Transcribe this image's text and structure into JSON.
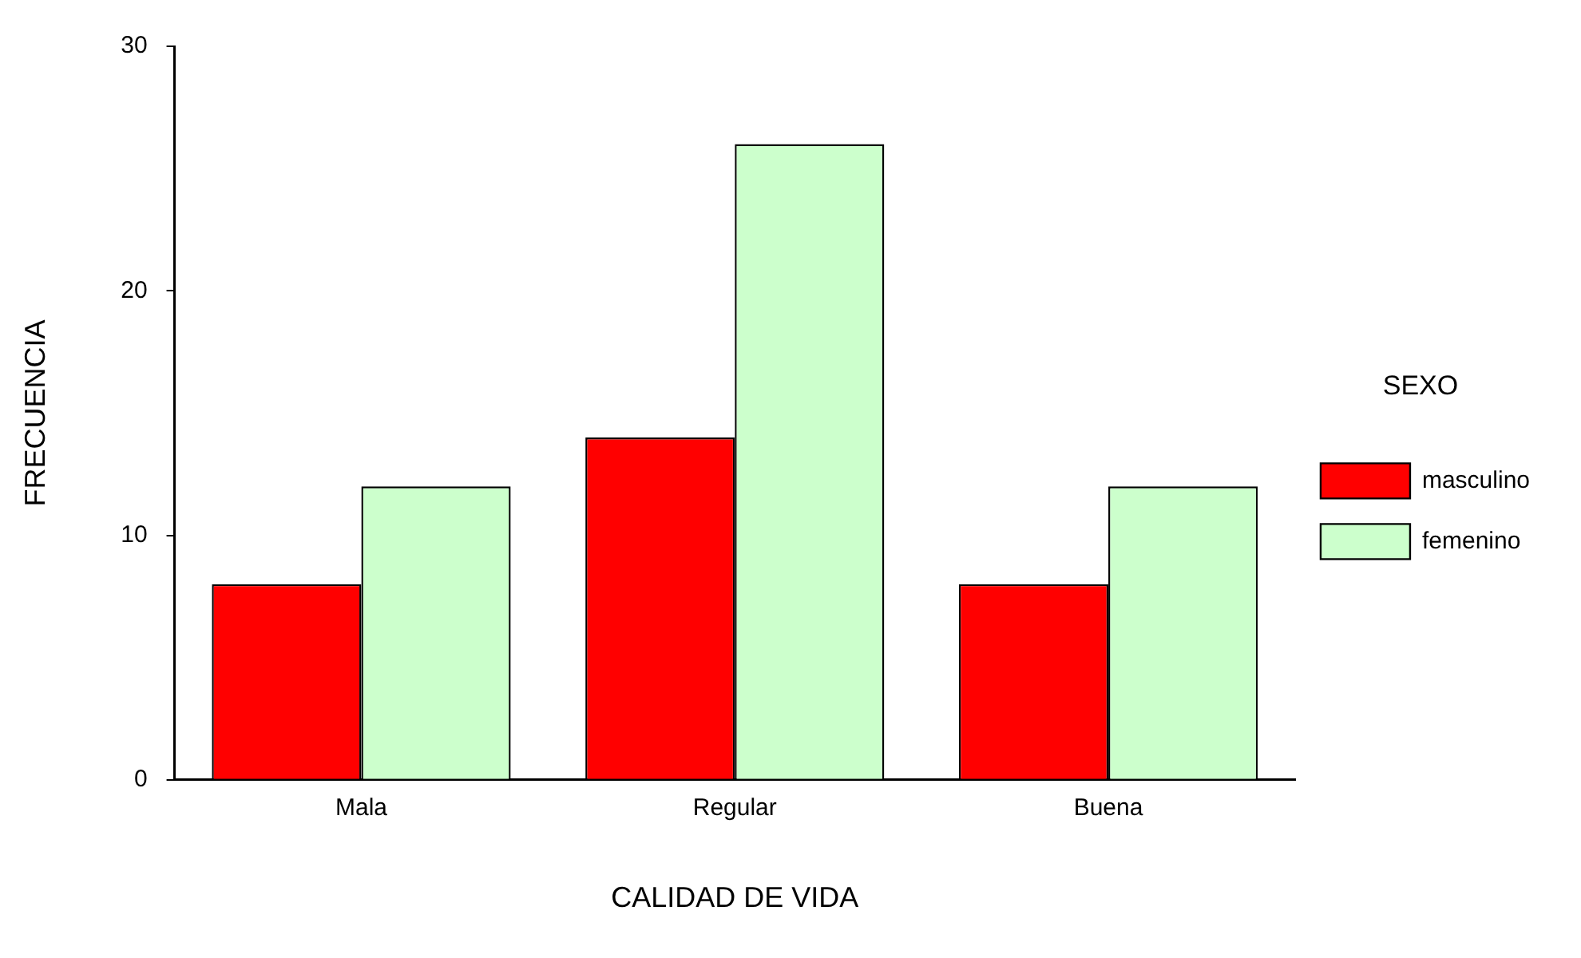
{
  "chart_data": {
    "type": "bar",
    "xlabel": "CALIDAD DE VIDA",
    "ylabel": "FRECUENCIA",
    "legend_title": "SEXO",
    "categories": [
      "Mala",
      "Regular",
      "Buena"
    ],
    "series": [
      {
        "name": "masculino",
        "color": "#ff0000",
        "values": [
          8,
          14,
          8
        ]
      },
      {
        "name": "femenino",
        "color": "#ccffcc",
        "values": [
          12,
          26,
          12
        ]
      }
    ],
    "ylim": [
      0,
      30
    ],
    "yticks": [
      0,
      10,
      20,
      30
    ],
    "grid": false,
    "legend": "right"
  }
}
